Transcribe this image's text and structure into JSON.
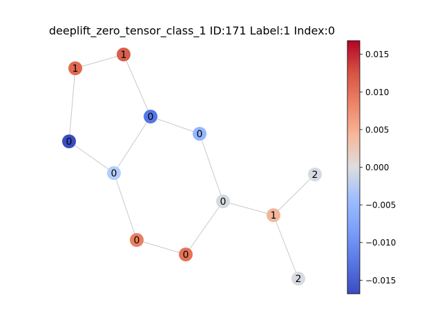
{
  "chart_data": {
    "type": "graph",
    "title": "deeplift_zero_tensor_class_1 ID:171 Label:1 Index:0",
    "colormap": {
      "name": "coolwarm",
      "min": -0.0168,
      "max": 0.0168,
      "ticks": [
        {
          "value": 0.015,
          "label": "0.015"
        },
        {
          "value": 0.01,
          "label": "0.010"
        },
        {
          "value": 0.005,
          "label": "0.005"
        },
        {
          "value": 0.0,
          "label": "0.000"
        },
        {
          "value": -0.005,
          "label": "−0.005"
        },
        {
          "value": -0.01,
          "label": "−0.010"
        },
        {
          "value": -0.015,
          "label": "−0.015"
        }
      ]
    },
    "nodes": [
      {
        "id": "n0",
        "label": "1",
        "color": "#d75f4c"
      },
      {
        "id": "n1",
        "label": "1",
        "color": "#e0694f"
      },
      {
        "id": "n2",
        "label": "0",
        "color": "#5577e4"
      },
      {
        "id": "n3",
        "label": "0",
        "color": "#94b6fd"
      },
      {
        "id": "n4",
        "label": "0",
        "color": "#3b4cc0"
      },
      {
        "id": "n5",
        "label": "0",
        "color": "#b5cdfa"
      },
      {
        "id": "n6",
        "label": "2",
        "color": "#d6dbe3"
      },
      {
        "id": "n7",
        "label": "0",
        "color": "#d5d9e0"
      },
      {
        "id": "n8",
        "label": "1",
        "color": "#f2b69c"
      },
      {
        "id": "n9",
        "label": "0",
        "color": "#e88060"
      },
      {
        "id": "n10",
        "label": "0",
        "color": "#e57358"
      },
      {
        "id": "n11",
        "label": "2",
        "color": "#d8dce2"
      }
    ],
    "edges": [
      [
        "n0",
        "n1"
      ],
      [
        "n0",
        "n2"
      ],
      [
        "n1",
        "n4"
      ],
      [
        "n4",
        "n5"
      ],
      [
        "n2",
        "n5"
      ],
      [
        "n2",
        "n3"
      ],
      [
        "n3",
        "n7"
      ],
      [
        "n7",
        "n8"
      ],
      [
        "n8",
        "n6"
      ],
      [
        "n8",
        "n11"
      ],
      [
        "n5",
        "n9"
      ],
      [
        "n9",
        "n10"
      ],
      [
        "n10",
        "n7"
      ]
    ]
  }
}
